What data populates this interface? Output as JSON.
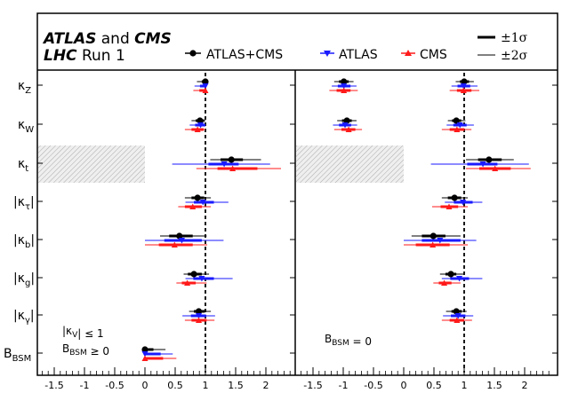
{
  "header": {
    "line1_italic": "ATLAS",
    "line1_and": " and ",
    "line1_cms": "CMS",
    "line2_italic": "LHC",
    "line2_rest": " Run 1"
  },
  "legend": {
    "combined": "ATLAS+CMS",
    "atlas": "ATLAS",
    "cms": "CMS",
    "sigma1": "±1σ",
    "sigma2": "±2σ"
  },
  "colors": {
    "combined": "#000000",
    "atlas": "#1a1aff",
    "cms": "#ff1a1a",
    "hatch": "#bbbbbb"
  },
  "chart_data": {
    "type": "scatter",
    "xlim": [
      -1.8,
      2.5
    ],
    "xticks": [
      -1.5,
      -1,
      -0.5,
      0,
      0.5,
      1,
      1.5,
      2
    ],
    "xtick_labels": [
      "-1.5",
      "-1",
      "-0.5",
      "0",
      "0.5",
      "1",
      "1.5",
      "2"
    ],
    "reference_line": 1,
    "parameters": [
      {
        "key": "kZ",
        "label": "κ",
        "sub": "Z",
        "abs": false
      },
      {
        "key": "kW",
        "label": "κ",
        "sub": "W",
        "abs": false
      },
      {
        "key": "kt",
        "label": "κ",
        "sub": "t",
        "abs": false
      },
      {
        "key": "ktau",
        "label": "κ",
        "sub": "τ",
        "abs": true
      },
      {
        "key": "kb",
        "label": "κ",
        "sub": "b",
        "abs": true
      },
      {
        "key": "kg",
        "label": "κ",
        "sub": "g",
        "abs": true
      },
      {
        "key": "kgam",
        "label": "κ",
        "sub": "γ",
        "abs": true
      },
      {
        "key": "BBSM",
        "label": "B",
        "sub": "BSM",
        "abs": false
      }
    ],
    "panels": [
      {
        "annotation": [
          "|κ_V| ≤ 1",
          "B_BSM ≥ 0"
        ],
        "hatched_params": [
          "kt"
        ],
        "hatch_range": [
          -1.8,
          0
        ],
        "points": {
          "kZ": {
            "combined": [
              {
                "c": 1.0,
                "s1": [
                  0.94,
                  1.0
                ],
                "s2": [
                  0.86,
                  1.0
                ]
              }
            ],
            "atlas": [
              {
                "c": 1.0,
                "s1": [
                  0.91,
                  1.0
                ],
                "s2": [
                  0.82,
                  1.0
                ]
              }
            ],
            "cms": [
              {
                "c": 1.0,
                "s1": [
                  0.9,
                  1.0
                ],
                "s2": [
                  0.8,
                  1.0
                ]
              }
            ]
          },
          "kW": {
            "combined": [
              {
                "c": 0.91,
                "s1": [
                  0.84,
                  0.98
                ],
                "s2": [
                  0.77,
                  1.0
                ]
              }
            ],
            "atlas": [
              {
                "c": 0.92,
                "s1": [
                  0.83,
                  1.0
                ],
                "s2": [
                  0.74,
                  1.0
                ]
              }
            ],
            "cms": [
              {
                "c": 0.87,
                "s1": [
                  0.77,
                  0.97
                ],
                "s2": [
                  0.66,
                  1.0
                ]
              }
            ]
          },
          "kt": {
            "combined": [
              {
                "c": 1.43,
                "s1": [
                  1.25,
                  1.62
                ],
                "s2": [
                  1.08,
                  1.92
                ]
              }
            ],
            "atlas": [
              {
                "c": 1.31,
                "s1": [
                  1.05,
                  1.55
                ],
                "s2": [
                  0.45,
                  2.07
                ]
              }
            ],
            "cms": [
              {
                "c": 1.45,
                "s1": [
                  1.2,
                  1.86
                ],
                "s2": [
                  0.85,
                  2.25
                ]
              }
            ]
          },
          "ktau": {
            "combined": [
              {
                "c": 0.87,
                "s1": [
                  0.77,
                  0.98
                ],
                "s2": [
                  0.66,
                  1.09
                ]
              }
            ],
            "atlas": [
              {
                "c": 0.96,
                "s1": [
                  0.81,
                  1.14
                ],
                "s2": [
                  0.67,
                  1.38
                ]
              }
            ],
            "cms": [
              {
                "c": 0.79,
                "s1": [
                  0.66,
                  0.94
                ],
                "s2": [
                  0.55,
                  1.09
                ]
              }
            ]
          },
          "kb": {
            "combined": [
              {
                "c": 0.57,
                "s1": [
                  0.4,
                  0.79
                ],
                "s2": [
                  0.25,
                  1.02
                ]
              }
            ],
            "atlas": [
              {
                "c": 0.61,
                "s1": [
                  0.32,
                  0.94
                ],
                "s2": [
                  0.0,
                  1.3
                ]
              }
            ],
            "cms": [
              {
                "c": 0.49,
                "s1": [
                  0.23,
                  0.79
                ],
                "s2": [
                  0.0,
                  1.03
                ]
              }
            ]
          },
          "kg": {
            "combined": [
              {
                "c": 0.81,
                "s1": [
                  0.71,
                  0.94
                ],
                "s2": [
                  0.64,
                  1.06
                ]
              }
            ],
            "atlas": [
              {
                "c": 0.94,
                "s1": [
                  0.8,
                  1.14
                ],
                "s2": [
                  0.67,
                  1.45
                ]
              }
            ],
            "cms": [
              {
                "c": 0.7,
                "s1": [
                  0.61,
                  0.84
                ],
                "s2": [
                  0.52,
                  1.02
                ]
              }
            ]
          },
          "kgam": {
            "combined": [
              {
                "c": 0.89,
                "s1": [
                  0.81,
                  0.99
                ],
                "s2": [
                  0.73,
                  1.09
                ]
              }
            ],
            "atlas": [
              {
                "c": 0.89,
                "s1": [
                  0.76,
                  1.01
                ],
                "s2": [
                  0.62,
                  1.16
                ]
              }
            ],
            "cms": [
              {
                "c": 0.89,
                "s1": [
                  0.77,
                  1.02
                ],
                "s2": [
                  0.66,
                  1.15
                ]
              }
            ]
          },
          "BBSM": {
            "combined": [
              {
                "c": 0.0,
                "s1": [
                  0.0,
                  0.14
                ],
                "s2": [
                  0.0,
                  0.34
                ]
              }
            ],
            "atlas": [
              {
                "c": 0.0,
                "s1": [
                  0.0,
                  0.26
                ],
                "s2": [
                  0.0,
                  0.46
                ]
              }
            ],
            "cms": [
              {
                "c": 0.0,
                "s1": [
                  0.0,
                  0.3
                ],
                "s2": [
                  0.0,
                  0.52
                ]
              }
            ]
          }
        }
      },
      {
        "annotation": [
          "B_BSM = 0"
        ],
        "hatched_params": [
          "kt"
        ],
        "hatch_range": [
          -1.8,
          0
        ],
        "points": {
          "kZ": {
            "combined": [
              {
                "c": -0.99,
                "s1": [
                  -1.07,
                  -0.91
                ],
                "s2": [
                  -1.15,
                  -0.83
                ]
              },
              {
                "c": 1.0,
                "s1": [
                  0.93,
                  1.08
                ],
                "s2": [
                  0.86,
                  1.16
                ]
              }
            ],
            "atlas": [
              {
                "c": -0.99,
                "s1": [
                  -1.09,
                  -0.88
                ],
                "s2": [
                  -1.19,
                  -0.78
                ]
              },
              {
                "c": 0.99,
                "s1": [
                  0.89,
                  1.1
                ],
                "s2": [
                  0.79,
                  1.22
                ]
              }
            ],
            "cms": [
              {
                "c": -0.99,
                "s1": [
                  -1.11,
                  -0.88
                ],
                "s2": [
                  -1.23,
                  -0.76
                ]
              },
              {
                "c": 0.99,
                "s1": [
                  0.88,
                  1.12
                ],
                "s2": [
                  0.76,
                  1.25
                ]
              }
            ]
          },
          "kW": {
            "combined": [
              {
                "c": -0.94,
                "s1": [
                  -1.02,
                  -0.86
                ],
                "s2": [
                  -1.1,
                  -0.78
                ]
              },
              {
                "c": 0.87,
                "s1": [
                  0.8,
                  0.95
                ],
                "s2": [
                  0.73,
                  1.02
                ]
              }
            ],
            "atlas": [
              {
                "c": -0.97,
                "s1": [
                  -1.07,
                  -0.87
                ],
                "s2": [
                  -1.17,
                  -0.77
                ]
              },
              {
                "c": 0.93,
                "s1": [
                  0.82,
                  1.04
                ],
                "s2": [
                  0.71,
                  1.16
                ]
              }
            ],
            "cms": [
              {
                "c": -0.91,
                "s1": [
                  -1.03,
                  -0.8
                ],
                "s2": [
                  -1.15,
                  -0.69
                ]
              },
              {
                "c": 0.88,
                "s1": [
                  0.76,
                  1.0
                ],
                "s2": [
                  0.63,
                  1.12
                ]
              }
            ]
          },
          "kt": {
            "combined": [
              {
                "c": 1.41,
                "s1": [
                  1.23,
                  1.62
                ],
                "s2": [
                  1.03,
                  1.82
                ]
              }
            ],
            "atlas": [
              {
                "c": 1.31,
                "s1": [
                  1.05,
                  1.55
                ],
                "s2": [
                  0.45,
                  2.07
                ]
              }
            ],
            "cms": [
              {
                "c": 1.51,
                "s1": [
                  1.25,
                  1.77
                ],
                "s2": [
                  1.03,
                  2.1
                ]
              }
            ]
          },
          "ktau": {
            "combined": [
              {
                "c": 0.84,
                "s1": [
                  0.73,
                  0.95
                ],
                "s2": [
                  0.63,
                  1.06
                ]
              }
            ],
            "atlas": [
              {
                "c": 0.98,
                "s1": [
                  0.83,
                  1.14
                ],
                "s2": [
                  0.68,
                  1.3
                ]
              }
            ],
            "cms": [
              {
                "c": 0.75,
                "s1": [
                  0.61,
                  0.9
                ],
                "s2": [
                  0.47,
                  1.06
                ]
              }
            ]
          },
          "kb": {
            "combined": [
              {
                "c": 0.49,
                "s1": [
                  0.3,
                  0.69
                ],
                "s2": [
                  0.13,
                  0.94
                ]
              }
            ],
            "atlas": [
              {
                "c": 0.6,
                "s1": [
                  0.3,
                  0.94
                ],
                "s2": [
                  0.0,
                  1.2
                ]
              }
            ],
            "cms": [
              {
                "c": 0.48,
                "s1": [
                  0.2,
                  0.76
                ],
                "s2": [
                  0.0,
                  1.06
                ]
              }
            ]
          },
          "kg": {
            "combined": [
              {
                "c": 0.78,
                "s1": [
                  0.69,
                  0.87
                ],
                "s2": [
                  0.6,
                  0.99
                ]
              }
            ],
            "atlas": [
              {
                "c": 0.92,
                "s1": [
                  0.77,
                  1.08
                ],
                "s2": [
                  0.63,
                  1.3
                ]
              }
            ],
            "cms": [
              {
                "c": 0.67,
                "s1": [
                  0.58,
                  0.79
                ],
                "s2": [
                  0.49,
                  0.94
                ]
              }
            ]
          },
          "kgam": {
            "combined": [
              {
                "c": 0.87,
                "s1": [
                  0.79,
                  0.96
                ],
                "s2": [
                  0.7,
                  1.04
                ]
              }
            ],
            "atlas": [
              {
                "c": 0.9,
                "s1": [
                  0.78,
                  1.02
                ],
                "s2": [
                  0.65,
                  1.15
                ]
              }
            ],
            "cms": [
              {
                "c": 0.88,
                "s1": [
                  0.76,
                  1.0
                ],
                "s2": [
                  0.63,
                  1.13
                ]
              }
            ]
          }
        }
      }
    ]
  }
}
